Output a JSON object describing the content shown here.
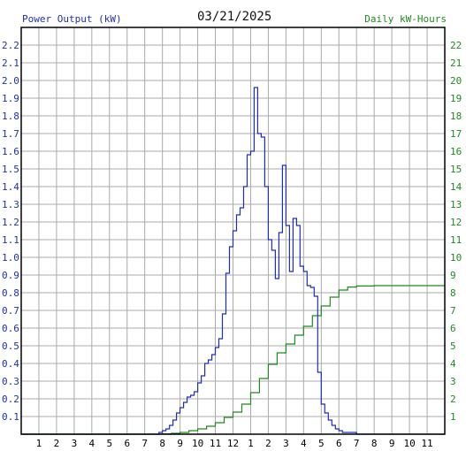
{
  "header": {
    "left_title": "Power Output (kW)",
    "date": "03/21/2025",
    "right_title": "Daily kW-Hours"
  },
  "colors": {
    "power": "#1d2fb5",
    "energy": "#1f8a1f",
    "grid": "#a9a9a9",
    "frame": "#000000"
  },
  "chart_data": {
    "type": "line",
    "title": "03/21/2025",
    "xlabel": "",
    "grid": true,
    "x_ticks": [
      "1",
      "2",
      "3",
      "4",
      "5",
      "6",
      "7",
      "8",
      "9",
      "10",
      "11",
      "12",
      "1",
      "2",
      "3",
      "4",
      "5",
      "6",
      "7",
      "8",
      "9",
      "10",
      "11"
    ],
    "xlim": [
      0,
      24
    ],
    "y_left": {
      "label": "Power Output (kW)",
      "ylim": [
        0,
        2.3
      ],
      "ticks": [
        "0.1",
        "0.2",
        "0.3",
        "0.4",
        "0.5",
        "0.6",
        "0.7",
        "0.8",
        "0.9",
        "1.0",
        "1.1",
        "1.2",
        "1.3",
        "1.4",
        "1.5",
        "1.6",
        "1.7",
        "1.8",
        "1.9",
        "2.0",
        "2.1",
        "2.2"
      ]
    },
    "y_right": {
      "label": "Daily kW-Hours",
      "ylim": [
        0,
        23
      ],
      "ticks": [
        "1",
        "2",
        "3",
        "4",
        "5",
        "6",
        "7",
        "8",
        "9",
        "10",
        "11",
        "12",
        "13",
        "14",
        "15",
        "16",
        "17",
        "18",
        "19",
        "20",
        "21",
        "22"
      ]
    },
    "series": [
      {
        "name": "Power Output (kW)",
        "axis": "left",
        "step": true,
        "x": [
          0,
          7.8,
          8.0,
          8.2,
          8.4,
          8.6,
          8.8,
          9.0,
          9.2,
          9.4,
          9.6,
          9.8,
          10.0,
          10.2,
          10.4,
          10.6,
          10.8,
          11.0,
          11.2,
          11.4,
          11.6,
          11.8,
          12.0,
          12.2,
          12.4,
          12.6,
          12.8,
          13.0,
          13.2,
          13.4,
          13.6,
          13.8,
          14.0,
          14.2,
          14.4,
          14.6,
          14.8,
          15.0,
          15.2,
          15.4,
          15.6,
          15.8,
          16.0,
          16.2,
          16.4,
          16.6,
          16.8,
          17.0,
          17.2,
          17.4,
          17.6,
          17.8,
          18.0,
          18.2,
          18.4,
          18.6,
          18.8,
          19.0,
          19.2,
          19.4,
          19.6,
          19.8,
          20.0,
          20.2,
          20.4
        ],
        "y": [
          0,
          0.01,
          0.02,
          0.03,
          0.05,
          0.08,
          0.12,
          0.15,
          0.18,
          0.21,
          0.22,
          0.24,
          0.29,
          0.33,
          0.4,
          0.42,
          0.45,
          0.49,
          0.54,
          0.68,
          0.91,
          1.06,
          1.15,
          1.24,
          1.28,
          1.4,
          1.58,
          1.6,
          1.96,
          1.7,
          1.68,
          1.4,
          1.1,
          1.04,
          0.88,
          1.14,
          1.52,
          1.18,
          0.92,
          1.22,
          1.18,
          0.95,
          0.92,
          0.84,
          0.83,
          0.78,
          0.35,
          0.17,
          0.12,
          0.08,
          0.05,
          0.03,
          0.02,
          0.01,
          0.01,
          0.01,
          0.01,
          0,
          0,
          0,
          0,
          0,
          0,
          0,
          0
        ]
      },
      {
        "name": "Daily kW-Hours",
        "axis": "right",
        "step": true,
        "x": [
          0,
          8.0,
          8.5,
          9.0,
          9.5,
          10.0,
          10.5,
          11.0,
          11.5,
          12.0,
          12.5,
          13.0,
          13.5,
          14.0,
          14.5,
          15.0,
          15.5,
          16.0,
          16.5,
          17.0,
          17.5,
          18.0,
          18.5,
          19.0,
          20.0,
          21.0,
          22.0,
          23.0,
          24.0
        ],
        "y": [
          0,
          0.02,
          0.05,
          0.1,
          0.2,
          0.3,
          0.45,
          0.65,
          0.95,
          1.25,
          1.7,
          2.35,
          3.15,
          3.95,
          4.6,
          5.1,
          5.6,
          6.1,
          6.7,
          7.25,
          7.75,
          8.15,
          8.32,
          8.38,
          8.4,
          8.4,
          8.4,
          8.4,
          8.4
        ]
      }
    ]
  }
}
